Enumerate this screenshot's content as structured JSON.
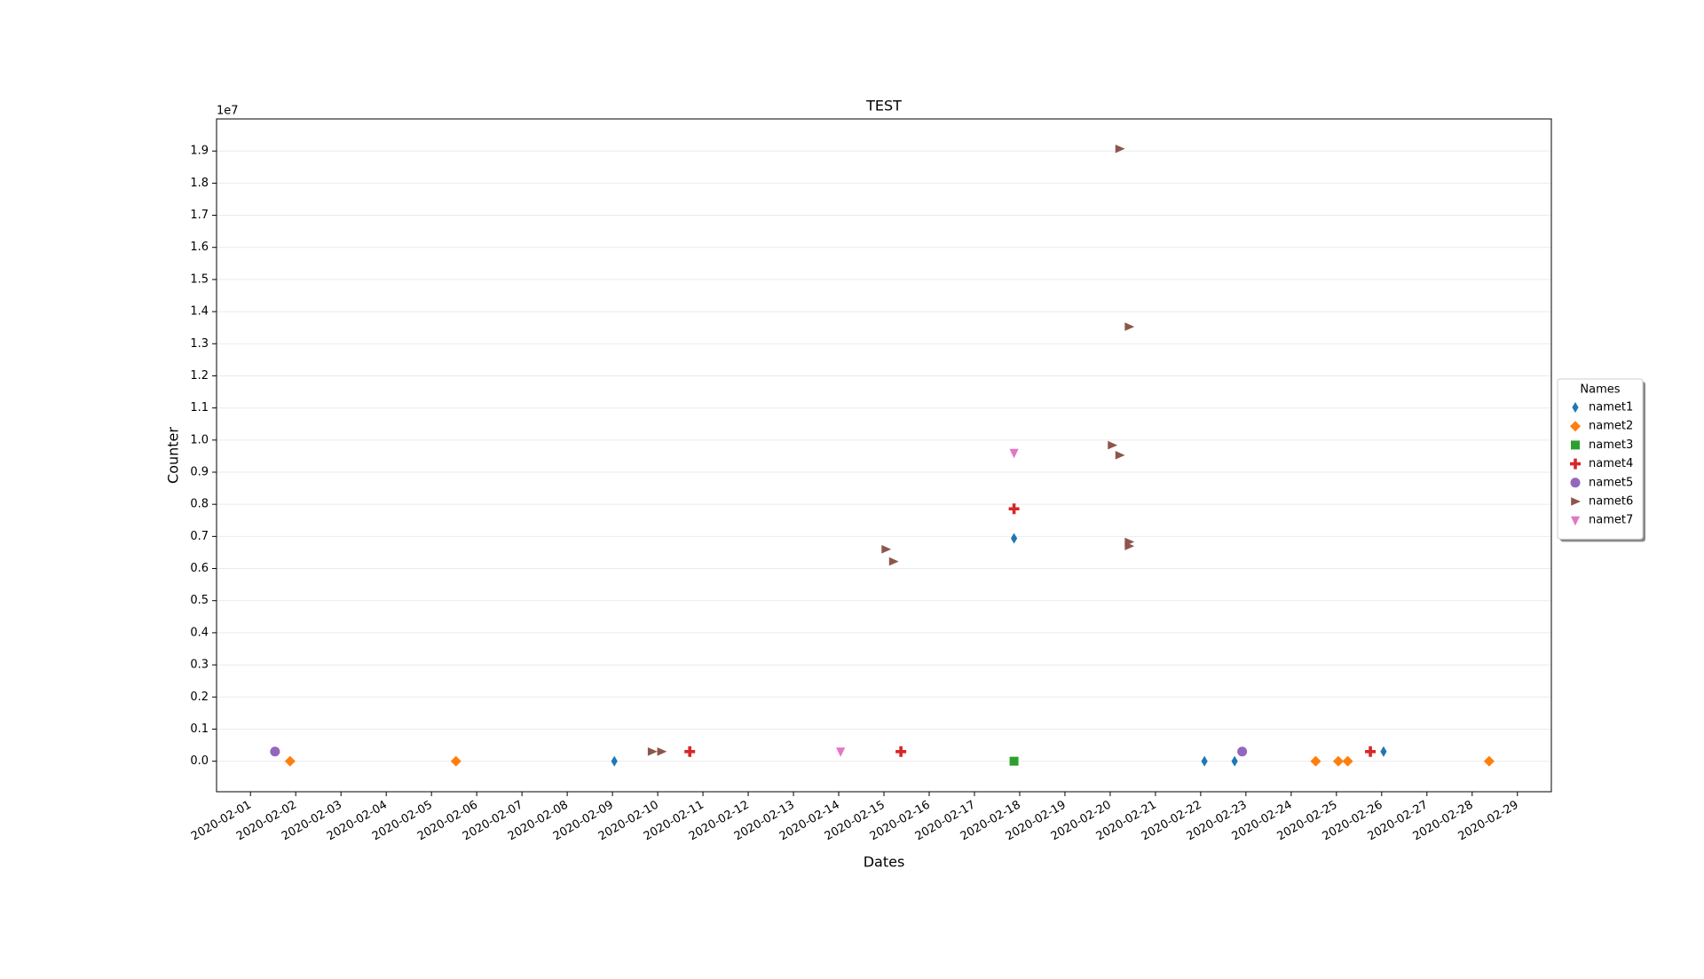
{
  "chart_data": {
    "type": "scatter",
    "title": "TEST",
    "x_label": "Dates",
    "y_label": "Counter",
    "y_offset_label": "1e7",
    "legend_title": "Names",
    "legend_position": "right",
    "grid": true,
    "xlim": [
      "2020-01-31T06:00",
      "2020-02-29T18:00"
    ],
    "xticks": [
      "2020-02-01",
      "2020-02-02",
      "2020-02-03",
      "2020-02-04",
      "2020-02-05",
      "2020-02-06",
      "2020-02-07",
      "2020-02-08",
      "2020-02-09",
      "2020-02-10",
      "2020-02-11",
      "2020-02-12",
      "2020-02-13",
      "2020-02-14",
      "2020-02-15",
      "2020-02-16",
      "2020-02-17",
      "2020-02-18",
      "2020-02-19",
      "2020-02-20",
      "2020-02-21",
      "2020-02-22",
      "2020-02-23",
      "2020-02-24",
      "2020-02-25",
      "2020-02-26",
      "2020-02-27",
      "2020-02-28",
      "2020-02-29"
    ],
    "ylim": [
      -950000,
      20000000
    ],
    "yticks": [
      {
        "value": 0,
        "label": "0.0"
      },
      {
        "value": 1000000,
        "label": "0.1"
      },
      {
        "value": 2000000,
        "label": "0.2"
      },
      {
        "value": 3000000,
        "label": "0.3"
      },
      {
        "value": 4000000,
        "label": "0.4"
      },
      {
        "value": 5000000,
        "label": "0.5"
      },
      {
        "value": 6000000,
        "label": "0.6"
      },
      {
        "value": 7000000,
        "label": "0.7"
      },
      {
        "value": 8000000,
        "label": "0.8"
      },
      {
        "value": 9000000,
        "label": "0.9"
      },
      {
        "value": 10000000,
        "label": "1.0"
      },
      {
        "value": 11000000,
        "label": "1.1"
      },
      {
        "value": 12000000,
        "label": "1.2"
      },
      {
        "value": 13000000,
        "label": "1.3"
      },
      {
        "value": 14000000,
        "label": "1.4"
      },
      {
        "value": 15000000,
        "label": "1.5"
      },
      {
        "value": 16000000,
        "label": "1.6"
      },
      {
        "value": 17000000,
        "label": "1.7"
      },
      {
        "value": 18000000,
        "label": "1.8"
      },
      {
        "value": 19000000,
        "label": "1.9"
      }
    ],
    "series": [
      {
        "name": "namet1",
        "color": "#1f77b4",
        "marker": "thin_diamond",
        "x": [
          "2020-02-09T01:00",
          "2020-02-17T21:00",
          "2020-02-22T02:00",
          "2020-02-22T18:00",
          "2020-02-26T01:00"
        ],
        "values": [
          0,
          6940000,
          0,
          0,
          300000
        ]
      },
      {
        "name": "namet2",
        "color": "#ff7f0e",
        "marker": "diamond",
        "x": [
          "2020-02-01T21:00",
          "2020-02-05T13:00",
          "2020-02-24T13:00",
          "2020-02-25T01:00",
          "2020-02-25T06:00",
          "2020-02-28T09:00"
        ],
        "values": [
          0,
          0,
          0,
          0,
          0,
          0
        ]
      },
      {
        "name": "namet3",
        "color": "#2ca02c",
        "marker": "square",
        "x": [
          "2020-02-17T21:00"
        ],
        "values": [
          0
        ]
      },
      {
        "name": "namet4",
        "color": "#d62728",
        "marker": "plus",
        "x": [
          "2020-02-10T17:00",
          "2020-02-15T09:00",
          "2020-02-17T21:00",
          "2020-02-25T18:00"
        ],
        "values": [
          300000,
          300000,
          7860000,
          300000
        ]
      },
      {
        "name": "namet5",
        "color": "#9467bd",
        "marker": "circle",
        "x": [
          "2020-02-01T13:00",
          "2020-02-22T22:00"
        ],
        "values": [
          300000,
          300000
        ]
      },
      {
        "name": "namet6",
        "color": "#8c564b",
        "marker": "triangle_right",
        "x": [
          "2020-02-09T21:00",
          "2020-02-10T02:00",
          "2020-02-15T01:00",
          "2020-02-15T05:00",
          "2020-02-20T05:00",
          "2020-02-20T10:00",
          "2020-02-20T01:00",
          "2020-02-20T05:00",
          "2020-02-20T10:00",
          "2020-02-20T10:00"
        ],
        "values": [
          300000,
          300000,
          6600000,
          6220000,
          19070000,
          13530000,
          9840000,
          9530000,
          6830000,
          6700000
        ]
      },
      {
        "name": "namet7",
        "color": "#e377c2",
        "marker": "triangle_down",
        "x": [
          "2020-02-14T01:00",
          "2020-02-17T21:00"
        ],
        "values": [
          300000,
          9600000
        ]
      }
    ]
  }
}
